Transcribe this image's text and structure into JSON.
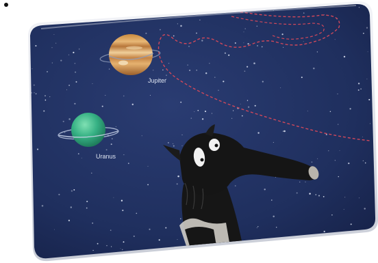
{
  "planets": [
    {
      "name": "Jupiter",
      "color": "#d9a05a"
    },
    {
      "name": "Uranus",
      "color": "#37b486"
    }
  ],
  "colors": {
    "sky": "#1f2f5e",
    "sky_dark": "#16224a",
    "card_edge": "#d4d8e2",
    "trail": "#d1485b",
    "star": "#e8eefb"
  },
  "character": {
    "icon": "anteater-character-icon"
  }
}
